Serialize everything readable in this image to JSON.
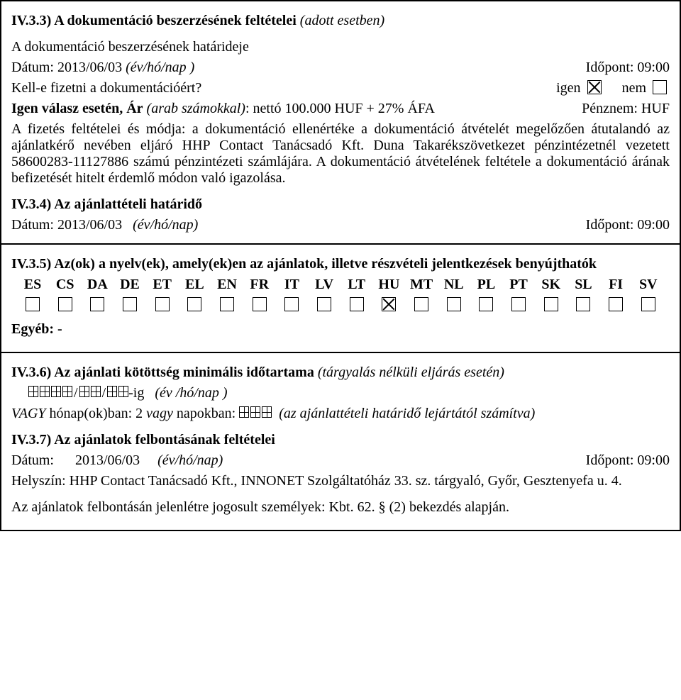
{
  "colors": {
    "text": "#000000",
    "background": "#ffffff",
    "border": "#000000"
  },
  "typography": {
    "family": "Times New Roman",
    "base_size_pt": 15
  },
  "section_iv33": {
    "heading_strong": "IV.3.3) A dokumentáció beszerzésének feltételei",
    "heading_italic": "(adott esetben)",
    "deadline_intro": "A dokumentáció beszerzésének határideje",
    "date_label": "Dátum: 2013/06/03",
    "date_hint": "(év/hó/nap )",
    "time_label": "Időpont: 09:00",
    "pay_question": "Kell-e fizetni a dokumentációért?",
    "yes_label": "igen",
    "no_label": "nem",
    "yes_checked": true,
    "no_checked": false,
    "price_line_lead": "Igen válasz esetén, Ár",
    "price_line_hint": "(arab számokkal)",
    "price_line_rest": ": nettó 100.000 HUF + 27% ÁFA",
    "currency_label": "Pénznem: HUF",
    "conditions_paragraph": "A fizetés feltételei és módja: a dokumentáció ellenértéke a dokumentáció átvételét megelőzően átutalandó az ajánlatkérő nevében eljáró HHP Contact Tanácsadó Kft. Duna Takarékszövetkezet pénzintézetnél vezetett 58600283-11127886 számú pénzintézeti számlájára. A dokumentáció átvételének feltétele a dokumentáció árának befizetését hitelt érdemlő módon való igazolása.",
    "iv34_heading": "IV.3.4) Az ajánlattételi határidő",
    "iv34_date_label": "Dátum:  2013/06/03",
    "iv34_date_hint": "(év/hó/nap)",
    "iv34_time_label": "Időpont: 09:00"
  },
  "section_iv35": {
    "heading": "IV.3.5) Az(ok) a nyelv(ek), amely(ek)en az ajánlatok, illetve részvételi jelentkezések benyújthatók",
    "languages": [
      {
        "code": "ES",
        "checked": false
      },
      {
        "code": "CS",
        "checked": false
      },
      {
        "code": "DA",
        "checked": false
      },
      {
        "code": "DE",
        "checked": false
      },
      {
        "code": "ET",
        "checked": false
      },
      {
        "code": "EL",
        "checked": false
      },
      {
        "code": "EN",
        "checked": false
      },
      {
        "code": "FR",
        "checked": false
      },
      {
        "code": "IT",
        "checked": false
      },
      {
        "code": "LV",
        "checked": false
      },
      {
        "code": "LT",
        "checked": false
      },
      {
        "code": "HU",
        "checked": true
      },
      {
        "code": "MT",
        "checked": false
      },
      {
        "code": "NL",
        "checked": false
      },
      {
        "code": "PL",
        "checked": false
      },
      {
        "code": "PT",
        "checked": false
      },
      {
        "code": "SK",
        "checked": false
      },
      {
        "code": "SL",
        "checked": false
      },
      {
        "code": "FI",
        "checked": false
      },
      {
        "code": "SV",
        "checked": false
      }
    ],
    "other_label": "Egyéb: -"
  },
  "section_iv36": {
    "heading_strong": "IV.3.6) Az ajánlati kötöttség minimális időtartama",
    "heading_italic": "(tárgyalás nélküli eljárás esetén)",
    "until_suffix": "-ig",
    "until_hint": "(év /hó/nap )",
    "or_label_italic": "VAGY",
    "months_text": " hónap(ok)ban:  2 ",
    "or_word": "vagy",
    "days_text": " napokban: ",
    "days_hint": "(az ajánlattételi határidő lejártától számítva)"
  },
  "section_iv37": {
    "heading": "IV.3.7) Az ajánlatok felbontásának feltételei",
    "date_label": "Dátum:",
    "date_value": "2013/06/03",
    "date_hint": "(év/hó/nap)",
    "time_label": "Időpont: 09:00",
    "location_text": "Helyszín: HHP Contact Tanácsadó Kft., INNONET Szolgáltatóház 33. sz. tárgyaló, Győr, Gesztenyefa u. 4.",
    "persons_text": "Az ajánlatok felbontásán jelenlétre jogosult személyek: Kbt. 62. § (2) bekezdés alapján."
  }
}
